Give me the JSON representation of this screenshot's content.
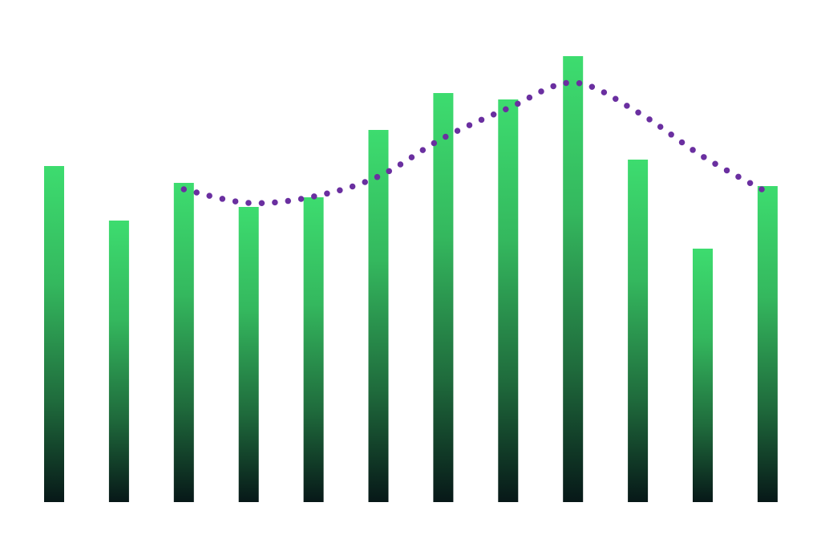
{
  "chart_data": {
    "type": "bar-line",
    "categories": [
      null,
      null,
      null,
      null,
      null,
      null,
      null,
      null,
      null,
      null,
      null,
      null
    ],
    "series": [
      {
        "name": null,
        "type": "bar",
        "color": "#3ddc6f",
        "values": [
          419,
          351,
          398,
          368,
          380,
          464,
          510,
          502,
          556,
          427,
          316,
          394
        ]
      },
      {
        "name": null,
        "type": "line",
        "color": "#6a2fa0",
        "values": [
          null,
          null,
          390,
          373,
          381,
          406,
          454,
          491,
          523,
          486,
          431,
          386
        ]
      }
    ],
    "ylim": [
      0,
      600
    ]
  }
}
